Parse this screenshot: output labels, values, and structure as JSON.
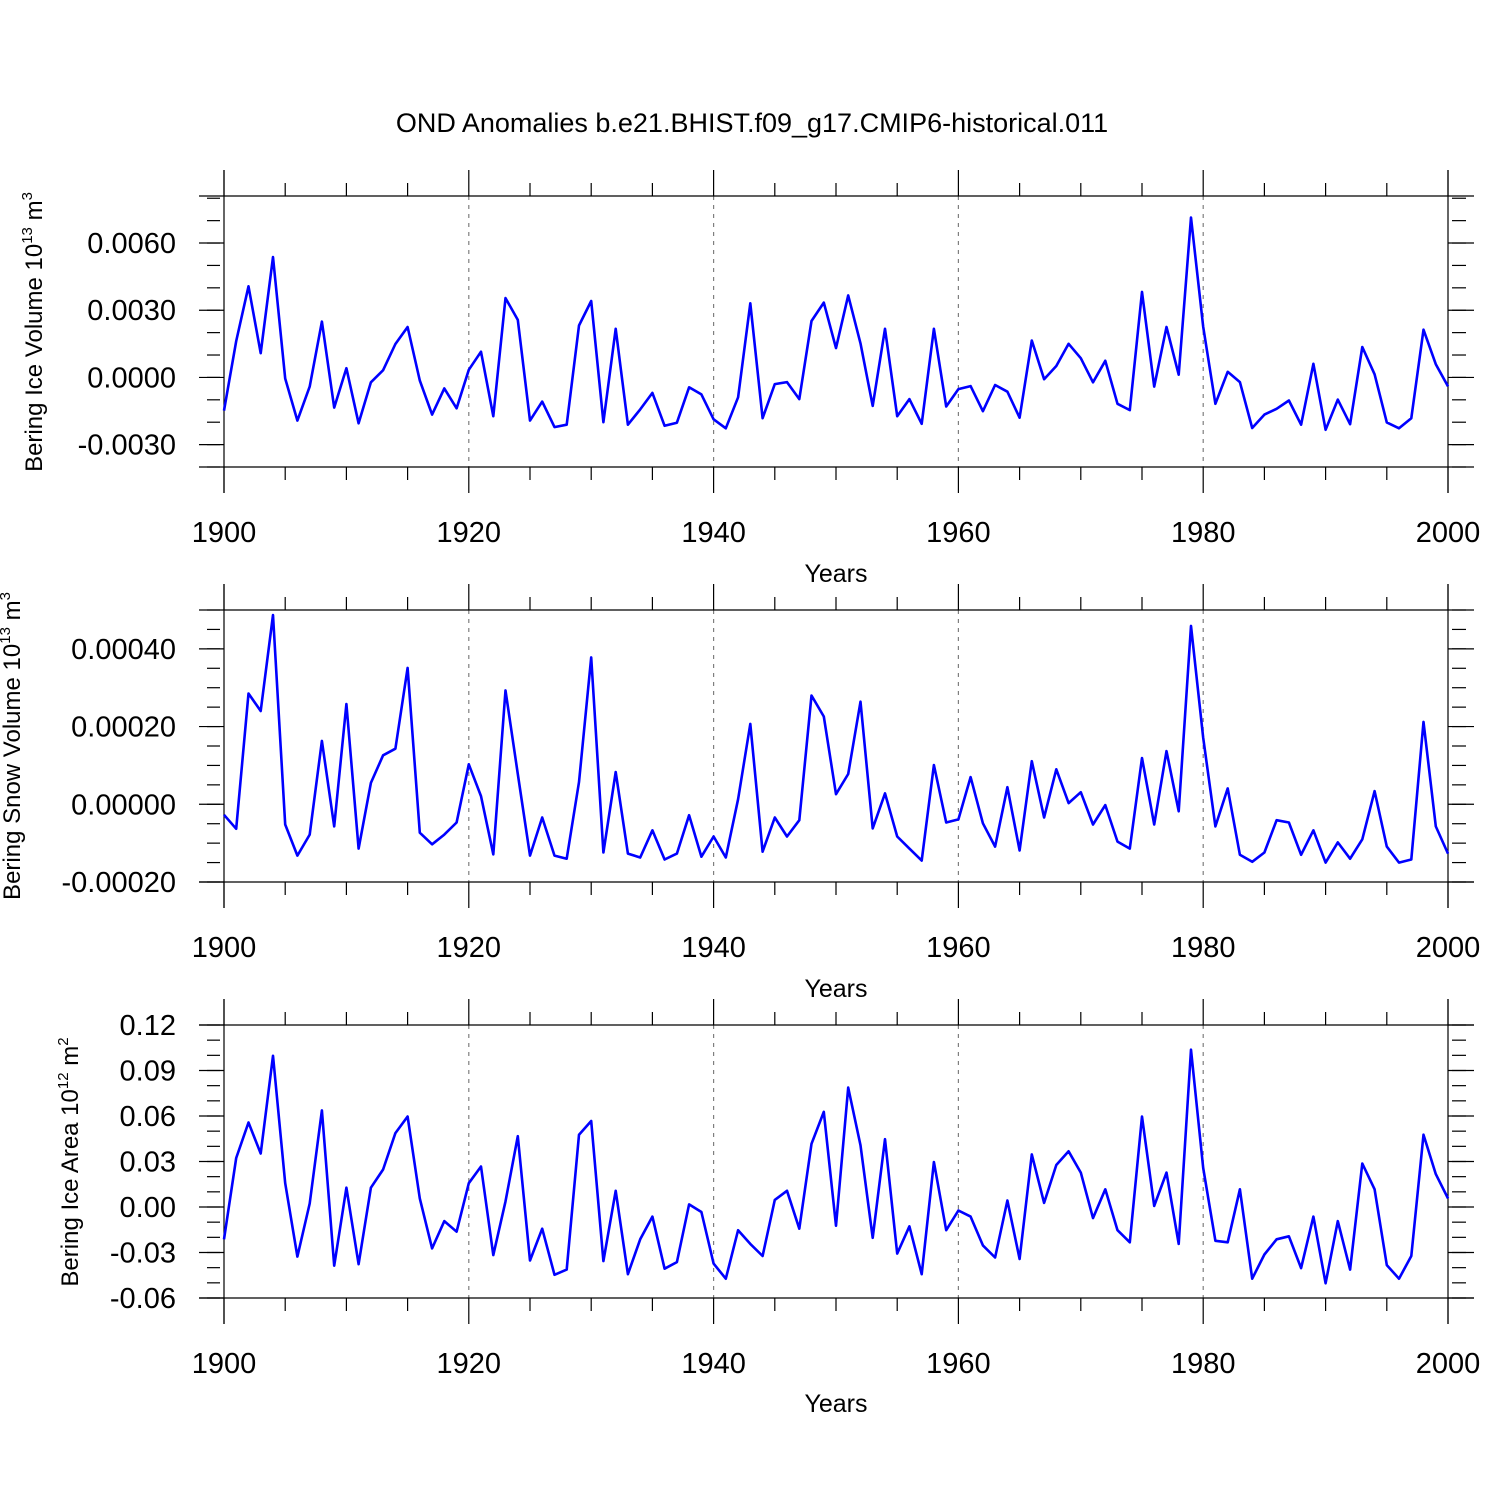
{
  "title": "OND Anomalies b.e21.BHIST.f09_g17.CMIP6-historical.011",
  "colors": {
    "line": "#0000ff",
    "axis": "#000000",
    "grid": "#7f7f7f"
  },
  "chart_data": [
    {
      "type": "line",
      "panel": "ice-volume",
      "ylabel": "Bering Ice Volume 10",
      "ylabel_exp": "13",
      "ylabel_unit": " m",
      "ylabel_unit_exp": "3",
      "xlabel": "Years",
      "xlim": [
        1900,
        2000
      ],
      "ylim": [
        -0.004,
        0.0081
      ],
      "xticks": [
        1900,
        1920,
        1940,
        1960,
        1980,
        2000
      ],
      "xtick_labels": [
        "1900",
        "1920",
        "1940",
        "1960",
        "1980",
        "2000"
      ],
      "yticks": [
        0.006,
        0.003,
        0.0,
        -0.003
      ],
      "ytick_labels": [
        "0.0060",
        "0.0030",
        "0.0000",
        "-0.0030"
      ],
      "yminor_step": 0.001,
      "grid_x": [
        1920,
        1940,
        1960,
        1980
      ],
      "series": [
        {
          "name": "Bering Ice Volume",
          "x": [
            1900,
            1901,
            1902,
            1903,
            1904,
            1905,
            1906,
            1907,
            1908,
            1909,
            1910,
            1911,
            1912,
            1913,
            1914,
            1915,
            1916,
            1917,
            1918,
            1919,
            1920,
            1921,
            1922,
            1923,
            1924,
            1925,
            1926,
            1927,
            1928,
            1929,
            1930,
            1931,
            1932,
            1933,
            1934,
            1935,
            1936,
            1937,
            1938,
            1939,
            1940,
            1941,
            1942,
            1943,
            1944,
            1945,
            1946,
            1947,
            1948,
            1949,
            1950,
            1951,
            1952,
            1953,
            1954,
            1955,
            1956,
            1957,
            1958,
            1959,
            1960,
            1961,
            1962,
            1963,
            1964,
            1965,
            1966,
            1967,
            1968,
            1969,
            1970,
            1971,
            1972,
            1973,
            1974,
            1975,
            1976,
            1977,
            1978,
            1979,
            1980,
            1981,
            1982,
            1983,
            1984,
            1985,
            1986,
            1987,
            1988,
            1989,
            1990,
            1991,
            1992,
            1993,
            1994,
            1995,
            1996,
            1997,
            1998,
            1999,
            2000
          ],
          "y": [
            -0.00148,
            0.00162,
            0.00407,
            0.00108,
            0.00537,
            -5e-05,
            -0.00193,
            -0.00041,
            0.00249,
            -0.00135,
            0.00041,
            -0.00205,
            -0.00022,
            0.00032,
            0.00149,
            0.00225,
            -0.00014,
            -0.00166,
            -0.00049,
            -0.00138,
            0.00034,
            0.00115,
            -0.00173,
            0.00354,
            0.00257,
            -0.00193,
            -0.00108,
            -0.00222,
            -0.00211,
            0.00232,
            0.00341,
            -0.002,
            0.00217,
            -0.00211,
            -0.00143,
            -0.00069,
            -0.00216,
            -0.00202,
            -0.00044,
            -0.00076,
            -0.00187,
            -0.00227,
            -0.00089,
            0.00331,
            -0.00182,
            -0.0003,
            -0.00021,
            -0.00097,
            0.00252,
            0.00334,
            0.00131,
            0.00366,
            0.00152,
            -0.00127,
            0.00217,
            -0.00173,
            -0.00097,
            -0.00207,
            0.00217,
            -0.0013,
            -0.00052,
            -0.00039,
            -0.00151,
            -0.00034,
            -0.00064,
            -0.0018,
            0.00165,
            -8e-05,
            0.00051,
            0.0015,
            0.00086,
            -0.00022,
            0.00074,
            -0.00118,
            -0.00146,
            0.00382,
            -0.00041,
            0.00225,
            0.00012,
            0.00714,
            0.00226,
            -0.00118,
            0.00025,
            -0.00021,
            -0.00226,
            -0.00166,
            -0.0014,
            -0.00103,
            -0.00211,
            0.00061,
            -0.00234,
            -0.00099,
            -0.00209,
            0.00136,
            0.00014,
            -0.00201,
            -0.00227,
            -0.00182,
            0.00213,
            0.00059,
            -0.0004
          ]
        }
      ]
    },
    {
      "type": "line",
      "panel": "snow-volume",
      "ylabel": "Bering Snow Volume 10",
      "ylabel_exp": "13",
      "ylabel_unit": " m",
      "ylabel_unit_exp": "3",
      "xlabel": "Years",
      "xlim": [
        1900,
        2000
      ],
      "ylim": [
        -0.0002,
        0.0005
      ],
      "xticks": [
        1900,
        1920,
        1940,
        1960,
        1980,
        2000
      ],
      "xtick_labels": [
        "1900",
        "1920",
        "1940",
        "1960",
        "1980",
        "2000"
      ],
      "yticks": [
        0.0004,
        0.0002,
        0.0,
        -0.0002
      ],
      "ytick_labels": [
        "0.00040",
        "0.00020",
        "0.00000",
        "-0.00020"
      ],
      "yminor_step": 5e-05,
      "grid_x": [
        1920,
        1940,
        1960,
        1980
      ],
      "series": [
        {
          "name": "Bering Snow Volume",
          "x": [
            1900,
            1901,
            1902,
            1903,
            1904,
            1905,
            1906,
            1907,
            1908,
            1909,
            1910,
            1911,
            1912,
            1913,
            1914,
            1915,
            1916,
            1917,
            1918,
            1919,
            1920,
            1921,
            1922,
            1923,
            1924,
            1925,
            1926,
            1927,
            1928,
            1929,
            1930,
            1931,
            1932,
            1933,
            1934,
            1935,
            1936,
            1937,
            1938,
            1939,
            1940,
            1941,
            1942,
            1943,
            1944,
            1945,
            1946,
            1947,
            1948,
            1949,
            1950,
            1951,
            1952,
            1953,
            1954,
            1955,
            1956,
            1957,
            1958,
            1959,
            1960,
            1961,
            1962,
            1963,
            1964,
            1965,
            1966,
            1967,
            1968,
            1969,
            1970,
            1971,
            1972,
            1973,
            1974,
            1975,
            1976,
            1977,
            1978,
            1979,
            1980,
            1981,
            1982,
            1983,
            1984,
            1985,
            1986,
            1987,
            1988,
            1989,
            1990,
            1991,
            1992,
            1993,
            1994,
            1995,
            1996,
            1997,
            1998,
            1999,
            2000
          ],
          "y": [
            -2.7e-05,
            -6.3e-05,
            0.000285,
            0.00024,
            0.000487,
            -5.2e-05,
            -0.000132,
            -7.8e-05,
            0.000163,
            -5.7e-05,
            0.000258,
            -0.000114,
            5.5e-05,
            0.000126,
            0.000143,
            0.000351,
            -7.3e-05,
            -0.000103,
            -7.8e-05,
            -4.7e-05,
            0.000103,
            2.1e-05,
            -0.000129,
            0.000293,
            7.8e-05,
            -0.000132,
            -3.4e-05,
            -0.000132,
            -0.00014,
            5.7e-05,
            0.000378,
            -0.000124,
            8.3e-05,
            -0.000127,
            -0.000137,
            -6.7e-05,
            -0.000142,
            -0.000127,
            -2.8e-05,
            -0.000135,
            -8.3e-05,
            -0.000137,
            1.3e-05,
            0.000207,
            -0.000122,
            -3.4e-05,
            -8.3e-05,
            -4.1e-05,
            0.00028,
            0.000226,
            2.6e-05,
            7.8e-05,
            0.000264,
            -6.2e-05,
            2.8e-05,
            -8.3e-05,
            -0.000114,
            -0.000145,
            0.000101,
            -4.7e-05,
            -3.9e-05,
            7e-05,
            -4.9e-05,
            -0.000109,
            4.4e-05,
            -0.000119,
            0.000111,
            -3.4e-05,
            9e-05,
            3e-06,
            3.1e-05,
            -5.2e-05,
            -2e-06,
            -9.6e-05,
            -0.000114,
            0.000119,
            -5.2e-05,
            0.000137,
            -1.8e-05,
            0.000459,
            0.000171,
            -5.7e-05,
            4.1e-05,
            -0.00013,
            -0.000148,
            -0.000124,
            -4.1e-05,
            -4.7e-05,
            -0.00013,
            -6.7e-05,
            -0.00015,
            -9.8e-05,
            -0.00014,
            -9e-05,
            3.4e-05,
            -0.000109,
            -0.00015,
            -0.000142,
            0.000212,
            -5.7e-05,
            -0.000127
          ]
        }
      ]
    },
    {
      "type": "line",
      "panel": "ice-area",
      "ylabel": "Bering Ice Area 10",
      "ylabel_exp": "12",
      "ylabel_unit": " m",
      "ylabel_unit_exp": "2",
      "xlabel": "Years",
      "xlim": [
        1900,
        2000
      ],
      "ylim": [
        -0.06,
        0.12
      ],
      "xticks": [
        1900,
        1920,
        1940,
        1960,
        1980,
        2000
      ],
      "xtick_labels": [
        "1900",
        "1920",
        "1940",
        "1960",
        "1980",
        "2000"
      ],
      "yticks": [
        0.12,
        0.09,
        0.06,
        0.03,
        0.0,
        -0.03,
        -0.06
      ],
      "ytick_labels": [
        "0.12",
        "0.09",
        "0.06",
        "0.03",
        "0.00",
        "-0.03",
        "-0.06"
      ],
      "yminor_step": 0.01,
      "grid_x": [
        1920,
        1940,
        1960,
        1980
      ],
      "series": [
        {
          "name": "Bering Ice Area",
          "x": [
            1900,
            1901,
            1902,
            1903,
            1904,
            1905,
            1906,
            1907,
            1908,
            1909,
            1910,
            1911,
            1912,
            1913,
            1914,
            1915,
            1916,
            1917,
            1918,
            1919,
            1920,
            1921,
            1922,
            1923,
            1924,
            1925,
            1926,
            1927,
            1928,
            1929,
            1930,
            1931,
            1932,
            1933,
            1934,
            1935,
            1936,
            1937,
            1938,
            1939,
            1940,
            1941,
            1942,
            1943,
            1944,
            1945,
            1946,
            1947,
            1948,
            1949,
            1950,
            1951,
            1952,
            1953,
            1954,
            1955,
            1956,
            1957,
            1958,
            1959,
            1960,
            1961,
            1962,
            1963,
            1964,
            1965,
            1966,
            1967,
            1968,
            1969,
            1970,
            1971,
            1972,
            1973,
            1974,
            1975,
            1976,
            1977,
            1978,
            1979,
            1980,
            1981,
            1982,
            1983,
            1984,
            1985,
            1986,
            1987,
            1988,
            1989,
            1990,
            1991,
            1992,
            1993,
            1994,
            1995,
            1996,
            1997,
            1998,
            1999,
            2000
          ],
          "y": [
            -0.0213,
            0.0323,
            0.0557,
            0.0353,
            0.0997,
            0.0157,
            -0.0327,
            0.0023,
            0.0637,
            -0.0387,
            0.0127,
            -0.0377,
            0.0127,
            0.0247,
            0.0487,
            0.0597,
            0.0057,
            -0.0273,
            -0.0093,
            -0.0163,
            0.0157,
            0.0267,
            -0.0317,
            0.0037,
            0.0467,
            -0.0353,
            -0.0143,
            -0.0447,
            -0.0413,
            0.0477,
            0.0567,
            -0.0357,
            0.0107,
            -0.0443,
            -0.0213,
            -0.0063,
            -0.0407,
            -0.0363,
            0.0017,
            -0.0033,
            -0.0373,
            -0.0473,
            -0.0153,
            -0.0243,
            -0.0323,
            0.0047,
            0.0107,
            -0.0143,
            0.0417,
            0.0627,
            -0.0123,
            0.0787,
            0.0407,
            -0.0203,
            0.0447,
            -0.0307,
            -0.0127,
            -0.0443,
            0.0297,
            -0.0153,
            -0.0023,
            -0.0063,
            -0.0253,
            -0.0333,
            0.0043,
            -0.0343,
            0.0347,
            0.0027,
            0.0277,
            0.0367,
            0.0227,
            -0.0073,
            0.0117,
            -0.0153,
            -0.0233,
            0.0597,
            0.0007,
            0.0227,
            -0.0243,
            0.1037,
            0.0257,
            -0.0223,
            -0.0233,
            0.0117,
            -0.0473,
            -0.0313,
            -0.0213,
            -0.0193,
            -0.0403,
            -0.0063,
            -0.0503,
            -0.0093,
            -0.0413,
            0.0287,
            0.0117,
            -0.0383,
            -0.0473,
            -0.0323,
            0.0477,
            0.0217,
            0.0057
          ]
        }
      ]
    }
  ]
}
